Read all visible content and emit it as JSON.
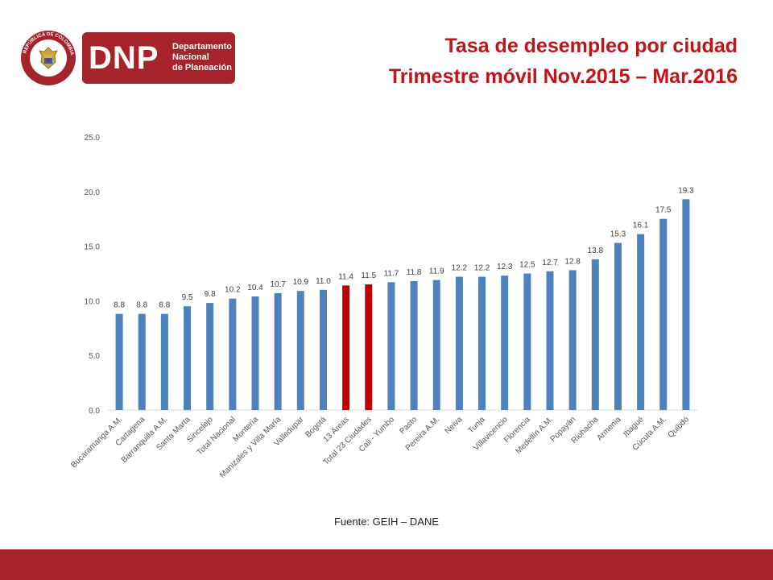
{
  "logo": {
    "acronym": "DNP",
    "lines": [
      "Departamento",
      "Nacional",
      "de Planeación"
    ],
    "seal_text": "REPÚBLICA DE COLOMBIA"
  },
  "title": {
    "line1": "Tasa de desempleo por ciudad",
    "line2": "Trimestre móvil Nov.2015 – Mar.2016"
  },
  "source": "Fuente: GEIH – DANE",
  "colors": {
    "brand": "#a7232c",
    "title": "#c0141a",
    "bar_default": "#4f81bd",
    "bar_highlight": "#c00000"
  },
  "chart_data": {
    "type": "bar",
    "categories": [
      "Bucaramanga A.M.",
      "Cartagena",
      "Barranquilla A.M.",
      "Santa Marta",
      "Sincelejo",
      "Total Nacional",
      "Montería",
      "Manizales y Villa María",
      "Valledupar",
      "Bogotá",
      "13 Áreas",
      "Total 23 Ciudades",
      "Cali - Yumbo",
      "Pasto",
      "Pereira A.M.",
      "Neiva",
      "Tunja",
      "Villavicencio",
      "Florencia",
      "Medellín A.M.",
      "Popayán",
      "Riohacha",
      "Armenia",
      "Ibagué",
      "Cúcuta A.M.",
      "Quibdó"
    ],
    "values": [
      8.8,
      8.8,
      8.8,
      9.5,
      9.8,
      10.2,
      10.4,
      10.7,
      10.9,
      11.0,
      11.4,
      11.5,
      11.7,
      11.8,
      11.9,
      12.2,
      12.2,
      12.3,
      12.5,
      12.7,
      12.8,
      13.8,
      15.3,
      16.1,
      17.5,
      19.3
    ],
    "value_labels": [
      "8.8",
      "8.8",
      "8.8",
      "9.5",
      "9.8",
      "10.2",
      "10.4",
      "10.7",
      "10.9",
      "11.0",
      "11.4",
      "11.5",
      "11.7",
      "11.8",
      "11.9",
      "12.2",
      "12.2",
      "12.3",
      "12.5",
      "12.7",
      "12.8",
      "13.8",
      "15.3",
      "16.1",
      "17.5",
      "19.3"
    ],
    "highlighted": [
      "13 Áreas",
      "Total 23 Ciudades"
    ],
    "ylim": [
      0,
      25
    ],
    "yticks": [
      "0.0",
      "5.0",
      "10.0",
      "15.0",
      "20.0",
      "25.0"
    ],
    "grid": false,
    "legend": false
  }
}
